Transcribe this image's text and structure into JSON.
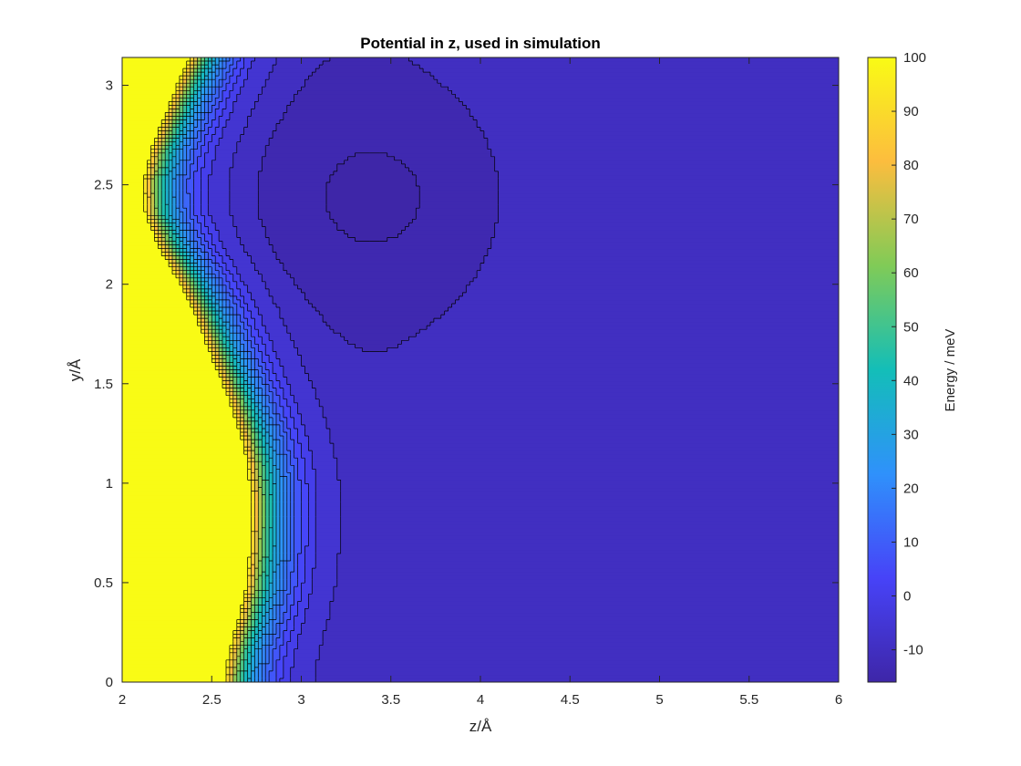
{
  "chart_data": {
    "type": "heatmap",
    "subtype": "filled-contour",
    "title": "Potential in z, used in simulation",
    "xlabel": "z/Å",
    "ylabel": "y/Å",
    "colorbar_label": "Energy / meV",
    "xlim": [
      2,
      6
    ],
    "ylim": [
      0,
      3.14
    ],
    "clim": [
      -16,
      100
    ],
    "xticks": [
      "2",
      "2.5",
      "3",
      "3.5",
      "4",
      "4.5",
      "5",
      "5.5",
      "6"
    ],
    "yticks": [
      "0",
      "0.5",
      "1",
      "1.5",
      "2",
      "2.5",
      "3"
    ],
    "colorbar_ticks": [
      "-10",
      "0",
      "10",
      "20",
      "30",
      "40",
      "50",
      "60",
      "70",
      "80",
      "90",
      "100"
    ],
    "colormap": "parula",
    "colormap_stops": [
      "#3e26a8",
      "#4743f8",
      "#2f91fb",
      "#13beb8",
      "#80cb57",
      "#fcbd3e",
      "#f9fb15"
    ],
    "contour_levels": [
      -14,
      -10,
      -6,
      0,
      4,
      8,
      12,
      16,
      20,
      24,
      28,
      32,
      36,
      40,
      44,
      48,
      52,
      56,
      60,
      64,
      68,
      72,
      76,
      80,
      84,
      88,
      92,
      96,
      100
    ],
    "y_samples": [
      0,
      0.157,
      0.314,
      0.471,
      0.628,
      0.785,
      0.942,
      1.099,
      1.256,
      1.413,
      1.57,
      1.727,
      1.884,
      2.041,
      2.198,
      2.355,
      2.512,
      2.669,
      2.826,
      2.983,
      3.14
    ],
    "wall_position_z": [
      2.59,
      2.62,
      2.67,
      2.71,
      2.73,
      2.74,
      2.74,
      2.72,
      2.68,
      2.62,
      2.55,
      2.48,
      2.41,
      2.32,
      2.22,
      2.15,
      2.14,
      2.18,
      2.25,
      2.32,
      2.4
    ],
    "well_center": {
      "z": 3.45,
      "y": 2.44,
      "depth": -16,
      "z_width": 0.6,
      "y_width": 0.5
    },
    "edge_contour_z": 5.85
  }
}
